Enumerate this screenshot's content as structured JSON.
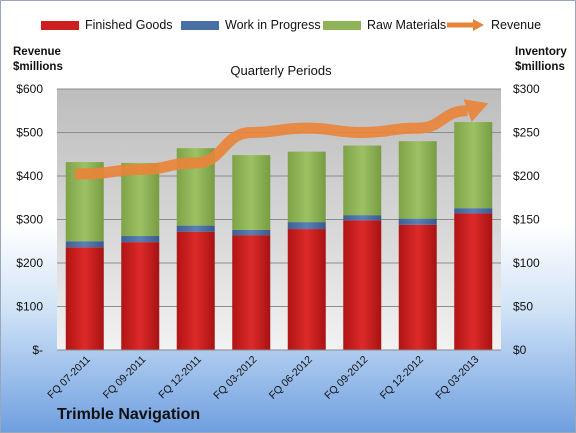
{
  "chart_data": {
    "type": "bar",
    "stacked": true,
    "title": "Quarterly Periods",
    "company": "Trimble Navigation",
    "ylabel_left_line1": "Revenue",
    "ylabel_left_line2": "$millions",
    "ylabel_right_line1": "Inventory",
    "ylabel_right_line2": "$millions",
    "categories": [
      "FQ 07-2011",
      "FQ 09-2011",
      "FQ 12-2011",
      "FQ 03-2012",
      "FQ 06-2012",
      "FQ 09-2012",
      "FQ 12-2012",
      "FQ 03-2013"
    ],
    "series": [
      {
        "name": "Finished Goods",
        "color": "#cc1f1f",
        "axis": "right",
        "values": [
          118,
          124,
          136,
          132,
          139,
          149,
          144,
          157
        ]
      },
      {
        "name": "Work in Progress",
        "color": "#4a6fa5",
        "axis": "right",
        "values": [
          7,
          7,
          7,
          6,
          8,
          6,
          7,
          6
        ]
      },
      {
        "name": "Raw Materials",
        "color": "#8fb357",
        "axis": "right",
        "values": [
          91,
          84,
          89,
          86,
          81,
          80,
          89,
          99
        ]
      }
    ],
    "revenue": {
      "name": "Revenue",
      "color": "#e8843a",
      "axis": "left",
      "values": [
        405,
        415,
        430,
        500,
        510,
        500,
        510,
        555
      ]
    },
    "left_axis": {
      "min": 0,
      "max": 600,
      "step": 100,
      "tick_labels": [
        "$-",
        "$100",
        "$200",
        "$300",
        "$400",
        "$500",
        "$600"
      ]
    },
    "right_axis": {
      "min": 0,
      "max": 300,
      "step": 50,
      "tick_labels": [
        "$0",
        "$50",
        "$100",
        "$150",
        "$200",
        "$250",
        "$300"
      ]
    },
    "legend_position": "top",
    "grid": true
  }
}
